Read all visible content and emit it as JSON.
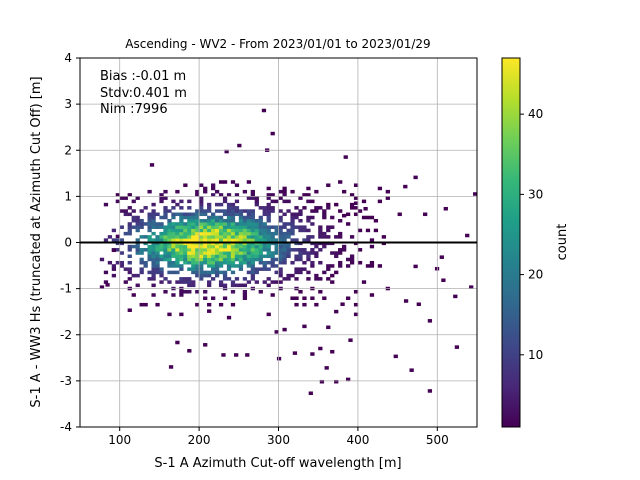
{
  "chart_data": {
    "type": "heatmap",
    "title": "Ascending - WV2 - From 2023/01/01 to 2023/01/29",
    "xlabel": "S-1 A Azimuth Cut-off wavelength [m]",
    "ylabel": "S-1 A - WW3 Hs (truncated at Azimuth Cut Off) [m]",
    "xlim": [
      50,
      550
    ],
    "ylim": [
      -4,
      4
    ],
    "xticks": [
      100,
      200,
      300,
      400,
      500
    ],
    "yticks": [
      -4,
      -3,
      -2,
      -1,
      0,
      1,
      2,
      3,
      4
    ],
    "grid": true,
    "reference_line_y": 0,
    "colormap": "viridis",
    "colorbar": {
      "label": "count",
      "min": 1,
      "max": 47,
      "ticks": [
        10,
        20,
        30,
        40
      ]
    },
    "annotation": [
      "Bias :-0.01 m",
      "Stdv:0.401 m",
      "Nim :7996"
    ],
    "density": {
      "center_x": 210,
      "center_y": -0.05,
      "peak_count": 47
    },
    "outliers": [
      [
        279,
        2.83
      ],
      [
        290,
        2.33
      ],
      [
        283,
        1.97
      ],
      [
        248,
        2.07
      ],
      [
        232,
        1.94
      ],
      [
        138,
        1.65
      ],
      [
        382,
        1.82
      ],
      [
        470,
        1.38
      ],
      [
        457,
        1.18
      ],
      [
        545,
        1.02
      ],
      [
        508,
        0.7
      ],
      [
        482,
        0.58
      ],
      [
        450,
        0.58
      ],
      [
        380,
        0.55
      ],
      [
        395,
        0.82
      ],
      [
        407,
        0.7
      ],
      [
        503,
        -0.35
      ],
      [
        505,
        -0.85
      ],
      [
        520,
        -1.2
      ],
      [
        540,
        -1.0
      ],
      [
        497,
        -0.6
      ],
      [
        470,
        -0.55
      ],
      [
        458,
        -1.3
      ],
      [
        474,
        -1.37
      ],
      [
        488,
        -1.73
      ],
      [
        370,
        -1.53
      ],
      [
        378,
        -1.37
      ],
      [
        360,
        -1.87
      ],
      [
        330,
        -1.85
      ],
      [
        305,
        -1.92
      ],
      [
        295,
        -1.97
      ],
      [
        170,
        -2.2
      ],
      [
        205,
        -2.25
      ],
      [
        228,
        -2.47
      ],
      [
        244,
        -2.47
      ],
      [
        258,
        -2.47
      ],
      [
        185,
        -2.38
      ],
      [
        298,
        -2.55
      ],
      [
        318,
        -2.43
      ],
      [
        340,
        -2.45
      ],
      [
        350,
        -2.33
      ],
      [
        365,
        -2.4
      ],
      [
        388,
        -2.15
      ],
      [
        445,
        -2.5
      ],
      [
        522,
        -2.3
      ],
      [
        358,
        -2.75
      ],
      [
        370,
        -3.05
      ],
      [
        385,
        -3.0
      ],
      [
        352,
        -3.05
      ],
      [
        465,
        -2.8
      ],
      [
        488,
        -3.25
      ],
      [
        338,
        -3.3
      ],
      [
        162,
        -2.73
      ],
      [
        110,
        -1.5
      ],
      [
        75,
        -1.0
      ],
      [
        90,
        -0.2
      ],
      [
        95,
        0.1
      ],
      [
        82,
        -0.95
      ],
      [
        550,
        -0.45
      ],
      [
        535,
        0.12
      ]
    ]
  }
}
